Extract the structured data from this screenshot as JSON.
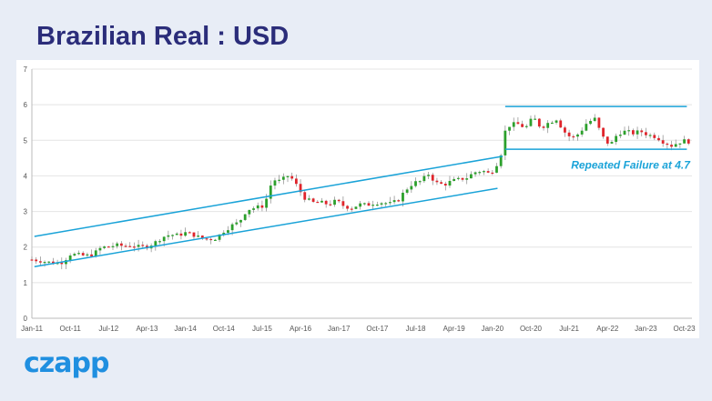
{
  "header": {
    "title": "Brazilian Real : USD"
  },
  "brand": {
    "logo_text": "czapp"
  },
  "colors": {
    "up": "#2ca02c",
    "down": "#e0242b",
    "line": "#1aa3d8",
    "grid": "#e4e4e4",
    "title": "#2b2d7a",
    "logo": "#1f8fe0"
  },
  "chart_data": {
    "type": "candlestick",
    "title": "Brazilian Real : USD",
    "xlabel": "",
    "ylabel": "",
    "ylim": [
      0,
      7
    ],
    "y_ticks": [
      0,
      1,
      2,
      3,
      4,
      5,
      6,
      7
    ],
    "x_range": [
      2011.0,
      2023.9
    ],
    "x_ticks": [
      {
        "label": "Jan-11",
        "x": 2011.0
      },
      {
        "label": "Oct-11",
        "x": 2011.75
      },
      {
        "label": "Jul-12",
        "x": 2012.5
      },
      {
        "label": "Apr-13",
        "x": 2013.25
      },
      {
        "label": "Jan-14",
        "x": 2014.0
      },
      {
        "label": "Oct-14",
        "x": 2014.75
      },
      {
        "label": "Jul-15",
        "x": 2015.5
      },
      {
        "label": "Apr-16",
        "x": 2016.25
      },
      {
        "label": "Jan-17",
        "x": 2017.0
      },
      {
        "label": "Oct-17",
        "x": 2017.75
      },
      {
        "label": "Jul-18",
        "x": 2018.5
      },
      {
        "label": "Apr-19",
        "x": 2019.25
      },
      {
        "label": "Jan-20",
        "x": 2020.0
      },
      {
        "label": "Oct-20",
        "x": 2020.75
      },
      {
        "label": "Jul-21",
        "x": 2021.5
      },
      {
        "label": "Apr-22",
        "x": 2022.25
      },
      {
        "label": "Jan-23",
        "x": 2023.0
      },
      {
        "label": "Oct-23",
        "x": 2023.75
      }
    ],
    "close_series": [
      [
        2011.0,
        1.65
      ],
      [
        2011.15,
        1.62
      ],
      [
        2011.3,
        1.58
      ],
      [
        2011.45,
        1.55
      ],
      [
        2011.6,
        1.58
      ],
      [
        2011.75,
        1.8
      ],
      [
        2011.9,
        1.78
      ],
      [
        2012.05,
        1.75
      ],
      [
        2012.2,
        1.8
      ],
      [
        2012.35,
        1.98
      ],
      [
        2012.5,
        2.02
      ],
      [
        2012.65,
        2.05
      ],
      [
        2012.8,
        2.03
      ],
      [
        2012.95,
        2.05
      ],
      [
        2013.1,
        2.0
      ],
      [
        2013.25,
        2.02
      ],
      [
        2013.4,
        2.12
      ],
      [
        2013.55,
        2.28
      ],
      [
        2013.7,
        2.35
      ],
      [
        2013.85,
        2.33
      ],
      [
        2014.0,
        2.4
      ],
      [
        2014.15,
        2.35
      ],
      [
        2014.3,
        2.25
      ],
      [
        2014.45,
        2.22
      ],
      [
        2014.6,
        2.25
      ],
      [
        2014.75,
        2.45
      ],
      [
        2014.9,
        2.6
      ],
      [
        2015.05,
        2.7
      ],
      [
        2015.2,
        3.05
      ],
      [
        2015.35,
        3.1
      ],
      [
        2015.5,
        3.15
      ],
      [
        2015.6,
        3.4
      ],
      [
        2015.7,
        3.9
      ],
      [
        2015.85,
        3.85
      ],
      [
        2016.0,
        4.0
      ],
      [
        2016.1,
        3.9
      ],
      [
        2016.25,
        3.55
      ],
      [
        2016.35,
        3.35
      ],
      [
        2016.5,
        3.25
      ],
      [
        2016.65,
        3.25
      ],
      [
        2016.8,
        3.2
      ],
      [
        2016.95,
        3.3
      ],
      [
        2017.1,
        3.15
      ],
      [
        2017.25,
        3.1
      ],
      [
        2017.4,
        3.2
      ],
      [
        2017.55,
        3.18
      ],
      [
        2017.7,
        3.25
      ],
      [
        2017.85,
        3.25
      ],
      [
        2018.0,
        3.22
      ],
      [
        2018.15,
        3.3
      ],
      [
        2018.3,
        3.6
      ],
      [
        2018.45,
        3.8
      ],
      [
        2018.6,
        3.85
      ],
      [
        2018.75,
        4.05
      ],
      [
        2018.9,
        3.8
      ],
      [
        2019.05,
        3.75
      ],
      [
        2019.2,
        3.85
      ],
      [
        2019.35,
        3.9
      ],
      [
        2019.5,
        3.95
      ],
      [
        2019.65,
        4.1
      ],
      [
        2019.8,
        4.15
      ],
      [
        2019.95,
        4.05
      ],
      [
        2020.05,
        4.25
      ],
      [
        2020.15,
        4.5
      ],
      [
        2020.25,
        5.25
      ],
      [
        2020.35,
        5.45
      ],
      [
        2020.5,
        5.45
      ],
      [
        2020.65,
        5.35
      ],
      [
        2020.8,
        5.65
      ],
      [
        2020.95,
        5.35
      ],
      [
        2021.1,
        5.5
      ],
      [
        2021.25,
        5.6
      ],
      [
        2021.4,
        5.25
      ],
      [
        2021.55,
        5.05
      ],
      [
        2021.7,
        5.2
      ],
      [
        2021.85,
        5.5
      ],
      [
        2022.0,
        5.6
      ],
      [
        2022.15,
        5.1
      ],
      [
        2022.3,
        4.85
      ],
      [
        2022.45,
        5.2
      ],
      [
        2022.6,
        5.25
      ],
      [
        2022.75,
        5.2
      ],
      [
        2022.9,
        5.25
      ],
      [
        2023.05,
        5.15
      ],
      [
        2023.2,
        5.1
      ],
      [
        2023.35,
        4.95
      ],
      [
        2023.5,
        4.85
      ],
      [
        2023.65,
        4.95
      ],
      [
        2023.8,
        5.0
      ],
      [
        2023.9,
        4.9
      ]
    ],
    "trend_lines": [
      {
        "name": "upper-channel",
        "points": [
          [
            2011.05,
            2.3
          ],
          [
            2020.2,
            4.55
          ]
        ]
      },
      {
        "name": "lower-channel",
        "points": [
          [
            2011.05,
            1.45
          ],
          [
            2020.1,
            3.65
          ]
        ]
      },
      {
        "name": "range-top",
        "points": [
          [
            2020.25,
            5.95
          ],
          [
            2023.8,
            5.95
          ]
        ]
      },
      {
        "name": "range-support",
        "points": [
          [
            2020.25,
            4.75
          ],
          [
            2023.8,
            4.75
          ]
        ]
      }
    ],
    "annotations": [
      {
        "text": "Repeated Failure at 4.7",
        "x": 2022.7,
        "y": 4.2
      }
    ]
  }
}
